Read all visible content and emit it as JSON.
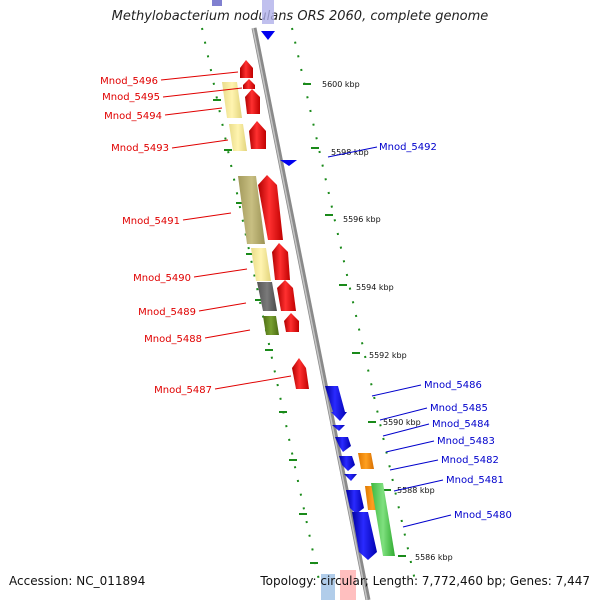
{
  "title": "Methylobacterium nodulans ORS 2060, complete genome",
  "accession": "Accession: NC_011894",
  "summary": "Topology: circular; Length: 7,772,460 bp; Genes: 7,447",
  "scale_labels": [
    "5600 kbp",
    "5598 kbp",
    "5596 kbp",
    "5594 kbp",
    "5592 kbp",
    "5590 kbp",
    "5588 kbp",
    "5586 kbp"
  ],
  "genes_left": [
    "Mnod_5496",
    "Mnod_5495",
    "Mnod_5494",
    "Mnod_5493",
    "Mnod_5491",
    "Mnod_5490",
    "Mnod_5489",
    "Mnod_5488",
    "Mnod_5487"
  ],
  "genes_right": [
    "Mnod_5492",
    "Mnod_5486",
    "Mnod_5485",
    "Mnod_5484",
    "Mnod_5483",
    "Mnod_5482",
    "Mnod_5481",
    "Mnod_5480"
  ],
  "colors": {
    "forward": "#ff0000",
    "reverse": "#0000ee",
    "backbone": "#888888",
    "tick": "#1a8a1a"
  }
}
